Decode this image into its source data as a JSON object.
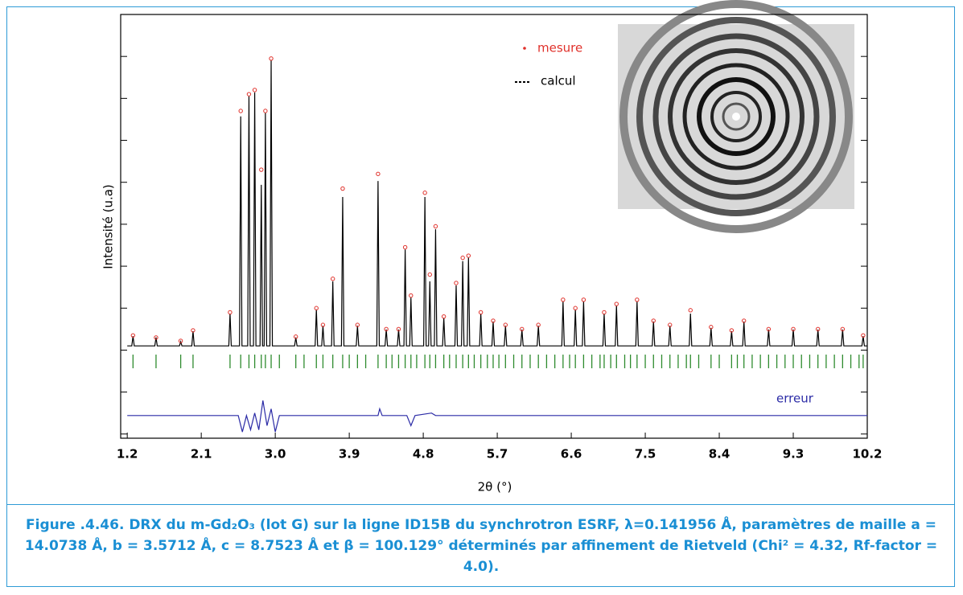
{
  "chart_data": {
    "type": "line",
    "xlabel": "2θ (°)",
    "ylabel": "Intensité (u.a)",
    "xlim": [
      1.12,
      10.2
    ],
    "ylim": [
      -2.1,
      8
    ],
    "xticks": [
      1.2,
      2.1,
      {
        "value": 3,
        "label": "3.0"
      },
      3.9,
      4.8,
      5.7,
      6.6,
      7.5,
      8.4,
      9.3,
      10.2
    ],
    "yticks": [
      -2,
      -1,
      0,
      1,
      2,
      3,
      4,
      5,
      6,
      7,
      8
    ],
    "series": [
      {
        "name": "calcul",
        "color": "#000000",
        "x": [
          1.2,
          1.255,
          1.27,
          1.285,
          1.535,
          1.55,
          1.565,
          1.835,
          1.85,
          1.865,
          1.985,
          2.0,
          2.015,
          2.435,
          2.45,
          2.465,
          2.565,
          2.58,
          2.595,
          2.665,
          2.68,
          2.695,
          2.735,
          2.75,
          2.765,
          2.815,
          2.83,
          2.845,
          2.865,
          2.88,
          2.895,
          2.935,
          2.95,
          2.965,
          3.235,
          3.25,
          3.265,
          3.485,
          3.5,
          3.515,
          3.565,
          3.58,
          3.595,
          3.685,
          3.7,
          3.715,
          3.805,
          3.82,
          3.835,
          3.985,
          4.0,
          4.015,
          4.235,
          4.25,
          4.265,
          4.335,
          4.35,
          4.365,
          4.485,
          4.5,
          4.515,
          4.565,
          4.58,
          4.595,
          4.635,
          4.65,
          4.665,
          4.805,
          4.82,
          4.835,
          4.865,
          4.88,
          4.895,
          4.935,
          4.95,
          4.965,
          5.035,
          5.05,
          5.065,
          5.185,
          5.2,
          5.215,
          5.265,
          5.28,
          5.295,
          5.335,
          5.35,
          5.365,
          5.485,
          5.5,
          5.515,
          5.635,
          5.65,
          5.665,
          5.785,
          5.8,
          5.815,
          5.985,
          6.0,
          6.015,
          6.185,
          6.2,
          6.215,
          6.485,
          6.5,
          6.515,
          6.635,
          6.65,
          6.665,
          6.735,
          6.75,
          6.765,
          6.985,
          7.0,
          7.015,
          7.135,
          7.15,
          7.165,
          7.385,
          7.4,
          7.415,
          7.585,
          7.6,
          7.615,
          7.785,
          7.8,
          7.815,
          8.035,
          8.05,
          8.065,
          8.285,
          8.3,
          8.315,
          8.535,
          8.55,
          8.565,
          8.685,
          8.7,
          8.715,
          8.985,
          9.0,
          9.015,
          9.285,
          9.3,
          9.315,
          9.585,
          9.6,
          9.615,
          9.885,
          9.9,
          9.915,
          10.135,
          10.15,
          10.165,
          10.2
        ],
        "values": [
          0.1,
          0.1,
          0.33,
          0.1,
          0.1,
          0.3,
          0.1,
          0.1,
          0.2,
          0.1,
          0.1,
          0.45,
          0.1,
          0.1,
          0.87,
          0.1,
          0.1,
          5.57,
          0.1,
          0.1,
          6.05,
          0.1,
          0.1,
          6.14,
          0.1,
          0.1,
          3.94,
          0.1,
          0.1,
          5.66,
          0.1,
          0.1,
          6.91,
          0.1,
          0.1,
          0.3,
          0.1,
          0.1,
          0.97,
          0.1,
          0.1,
          0.58,
          0.1,
          0.1,
          1.64,
          0.1,
          0.1,
          3.65,
          0.1,
          0.1,
          0.58,
          0.1,
          0.1,
          4.03,
          0.1,
          0.1,
          0.49,
          0.1,
          0.1,
          0.49,
          0.1,
          0.1,
          2.4,
          0.1,
          0.1,
          1.25,
          0.1,
          0.1,
          3.65,
          0.1,
          0.1,
          1.64,
          0.1,
          0.1,
          2.88,
          0.1,
          0.1,
          0.77,
          0.1,
          0.1,
          1.54,
          0.1,
          0.1,
          2.12,
          0.1,
          0.1,
          2.21,
          0.1,
          0.1,
          0.87,
          0.1,
          0.1,
          0.68,
          0.1,
          0.1,
          0.58,
          0.1,
          0.1,
          0.49,
          0.1,
          0.1,
          0.58,
          0.1,
          0.1,
          1.16,
          0.1,
          0.1,
          0.97,
          0.1,
          0.1,
          1.16,
          0.1,
          0.1,
          0.87,
          0.1,
          0.1,
          1.06,
          0.1,
          0.1,
          1.16,
          0.1,
          0.1,
          0.68,
          0.1,
          0.1,
          0.58,
          0.1,
          0.1,
          0.87,
          0.1,
          0.1,
          0.53,
          0.1,
          0.1,
          0.45,
          0.1,
          0.1,
          0.68,
          0.1,
          0.1,
          0.49,
          0.1,
          0.1,
          0.49,
          0.1,
          0.1,
          0.49,
          0.1,
          0.1,
          0.49,
          0.1,
          0.1,
          0.33,
          0.1,
          0.1
        ]
      },
      {
        "name": "mesure",
        "color": "#e0302a",
        "marker": "circle",
        "x": [
          1.27,
          1.55,
          1.85,
          2.0,
          2.45,
          2.58,
          2.68,
          2.75,
          2.83,
          2.88,
          2.95,
          3.25,
          3.5,
          3.58,
          3.7,
          3.82,
          4.0,
          4.25,
          4.35,
          4.5,
          4.58,
          4.65,
          4.82,
          4.88,
          4.95,
          5.05,
          5.2,
          5.28,
          5.35,
          5.5,
          5.65,
          5.8,
          6.0,
          6.2,
          6.5,
          6.65,
          6.75,
          7.0,
          7.15,
          7.4,
          7.6,
          7.8,
          8.05,
          8.3,
          8.55,
          8.7,
          9.0,
          9.3,
          9.6,
          9.9,
          10.15
        ],
        "values": [
          0.35,
          0.3,
          0.22,
          0.47,
          0.9,
          5.7,
          6.1,
          6.2,
          4.3,
          5.7,
          6.95,
          0.32,
          1.0,
          0.6,
          1.7,
          3.85,
          0.6,
          4.2,
          0.5,
          0.5,
          2.45,
          1.3,
          3.75,
          1.8,
          2.95,
          0.8,
          1.6,
          2.2,
          2.25,
          0.9,
          0.7,
          0.6,
          0.5,
          0.6,
          1.2,
          1.0,
          1.2,
          0.9,
          1.1,
          1.2,
          0.7,
          0.6,
          0.95,
          0.55,
          0.47,
          0.7,
          0.5,
          0.5,
          0.5,
          0.5,
          0.35
        ]
      },
      {
        "name": "erreur",
        "color": "#2b2ba6",
        "x": [
          1.2,
          2.55,
          2.6,
          2.65,
          2.7,
          2.75,
          2.8,
          2.85,
          2.9,
          2.95,
          3.0,
          3.05,
          4.25,
          4.27,
          4.3,
          4.6,
          4.65,
          4.7,
          4.9,
          4.95,
          10.2
        ],
        "values": [
          -1.56,
          -1.56,
          -1.95,
          -1.56,
          -1.9,
          -1.5,
          -1.9,
          -1.2,
          -1.8,
          -1.4,
          -1.95,
          -1.56,
          -1.56,
          -1.4,
          -1.56,
          -1.56,
          -1.8,
          -1.56,
          -1.5,
          -1.56,
          -1.56
        ]
      }
    ],
    "reflections": {
      "color": "#2e8b2e",
      "x": [
        1.27,
        1.55,
        1.85,
        2.0,
        2.45,
        2.58,
        2.68,
        2.75,
        2.83,
        2.88,
        2.95,
        3.05,
        3.25,
        3.35,
        3.5,
        3.58,
        3.7,
        3.82,
        3.9,
        4.0,
        4.1,
        4.25,
        4.35,
        4.42,
        4.5,
        4.58,
        4.65,
        4.72,
        4.82,
        4.88,
        4.95,
        5.05,
        5.12,
        5.2,
        5.28,
        5.35,
        5.42,
        5.5,
        5.58,
        5.65,
        5.72,
        5.8,
        5.9,
        6.0,
        6.1,
        6.2,
        6.3,
        6.4,
        6.5,
        6.58,
        6.65,
        6.75,
        6.85,
        6.95,
        7.0,
        7.08,
        7.15,
        7.25,
        7.32,
        7.4,
        7.5,
        7.6,
        7.7,
        7.8,
        7.9,
        8.0,
        8.05,
        8.15,
        8.3,
        8.4,
        8.55,
        8.62,
        8.7,
        8.8,
        8.9,
        9.0,
        9.1,
        9.2,
        9.3,
        9.4,
        9.5,
        9.6,
        9.7,
        9.8,
        9.9,
        10.0,
        10.1,
        10.15
      ]
    }
  },
  "caption": "Figure .4.46. DRX du m-Gd₂O₃ (lot G) sur la ligne ID15B du synchrotron ESRF, λ=0.141956 Å, paramètres de maille a = 14.0738 Å, b = 3.5712 Å, c = 8.7523 Å et β = 100.129° déterminés par affinement de Rietveld (Chi² = 4.32, Rf-factor = 4.0)."
}
